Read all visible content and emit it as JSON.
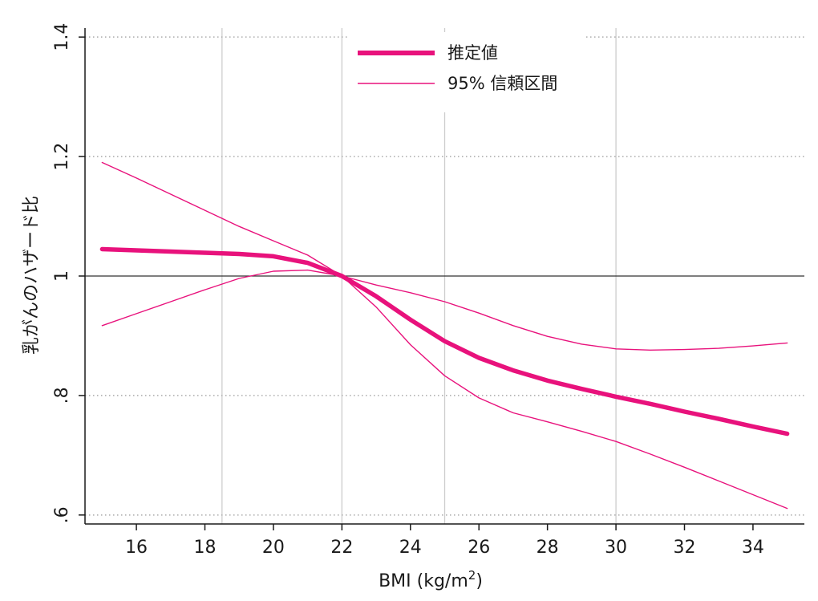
{
  "chart_data": {
    "type": "line",
    "xlabel": "BMI (kg/m2)",
    "xlabel_parts": [
      "BMI (kg/m",
      "2",
      ")"
    ],
    "ylabel": "乳がんのハザード比",
    "xlim": [
      14.5,
      35.5
    ],
    "ylim": [
      0.585,
      1.415
    ],
    "x_ticks": [
      16,
      18,
      20,
      22,
      24,
      26,
      28,
      30,
      32,
      34
    ],
    "x_tick_labels": [
      "16",
      "18",
      "20",
      "22",
      "24",
      "26",
      "28",
      "30",
      "32",
      "34"
    ],
    "y_ticks": [
      0.6,
      0.8,
      1.0,
      1.2,
      1.4
    ],
    "y_tick_labels": [
      ".6",
      ".8",
      "1",
      "1.2",
      "1.4"
    ],
    "y_gridlines": [
      0.6,
      0.8,
      1.2,
      1.4
    ],
    "x_reference_lines": [
      18.5,
      22,
      25,
      30
    ],
    "reference_y": 1.0,
    "legend_position": "top-center",
    "colors": {
      "series": "#e8127c",
      "reference": "#333333",
      "grid": "#aaaaaa",
      "vgrid": "#cccccc",
      "axis": "#1a1a1a"
    },
    "series": [
      {
        "name": "推定値",
        "style": "thick",
        "x": [
          15,
          16,
          17,
          18,
          19,
          20,
          21,
          22,
          23,
          24,
          25,
          26,
          27,
          28,
          29,
          30,
          31,
          32,
          33,
          34,
          35
        ],
        "y": [
          1.045,
          1.043,
          1.041,
          1.039,
          1.037,
          1.033,
          1.022,
          1.0,
          0.966,
          0.927,
          0.891,
          0.863,
          0.842,
          0.825,
          0.811,
          0.798,
          0.786,
          0.773,
          0.761,
          0.748,
          0.736
        ]
      },
      {
        "name": "95% 信頼区間",
        "style": "thin",
        "x": [
          15,
          16,
          17,
          18,
          19,
          20,
          21,
          22,
          23,
          24,
          25,
          26,
          27,
          28,
          29,
          30,
          31,
          32,
          33,
          34,
          35
        ],
        "y": [
          1.19,
          1.164,
          1.137,
          1.11,
          1.083,
          1.059,
          1.035,
          1.0,
          0.985,
          0.972,
          0.957,
          0.938,
          0.917,
          0.899,
          0.886,
          0.878,
          0.876,
          0.877,
          0.879,
          0.883,
          0.888
        ]
      },
      {
        "name": "",
        "style": "thin",
        "x": [
          15,
          16,
          17,
          18,
          19,
          20,
          21,
          22,
          23,
          24,
          25,
          26,
          27,
          28,
          29,
          30,
          31,
          32,
          33,
          34,
          35
        ],
        "y": [
          0.917,
          0.937,
          0.957,
          0.977,
          0.996,
          1.008,
          1.01,
          1.0,
          0.948,
          0.885,
          0.833,
          0.796,
          0.771,
          0.756,
          0.74,
          0.723,
          0.702,
          0.68,
          0.657,
          0.634,
          0.611
        ]
      }
    ]
  }
}
